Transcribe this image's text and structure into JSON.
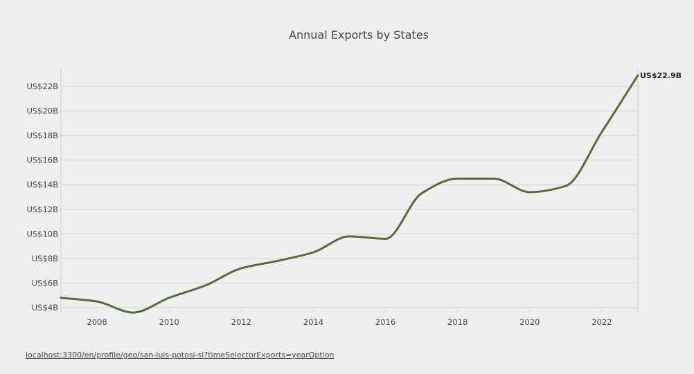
{
  "chart_data": {
    "type": "line",
    "title": "Annual Exports by States",
    "xlabel": "",
    "ylabel": "",
    "x": [
      2007,
      2008,
      2009,
      2010,
      2011,
      2012,
      2013,
      2014,
      2015,
      2016,
      2017,
      2018,
      2019,
      2020,
      2021,
      2022,
      2023
    ],
    "series": [
      {
        "name": "Exports",
        "color": "#556b3c",
        "values": [
          4.8,
          4.5,
          3.6,
          4.8,
          5.8,
          7.2,
          7.8,
          8.5,
          9.8,
          9.6,
          13.3,
          14.5,
          14.5,
          13.4,
          13.9,
          18.3,
          22.9
        ]
      }
    ],
    "ylim": [
      4,
      23
    ],
    "yticks": [
      4,
      6,
      8,
      10,
      12,
      14,
      16,
      18,
      20,
      22
    ],
    "ytick_labels": [
      "US$4B",
      "US$6B",
      "US$8B",
      "US$10B",
      "US$12B",
      "US$14B",
      "US$16B",
      "US$18B",
      "US$20B",
      "US$22B"
    ],
    "xticks": [
      2008,
      2010,
      2012,
      2014,
      2016,
      2018,
      2020,
      2022
    ],
    "xtick_labels": [
      "2008",
      "2010",
      "2012",
      "2014",
      "2016",
      "2018",
      "2020",
      "2022"
    ],
    "end_label": "US$22.9B",
    "grid": true
  },
  "footer": {
    "source_url": "localhost:3300/en/profile/geo/san-luis-potosi-sl?timeSelectorExports=yearOption"
  }
}
